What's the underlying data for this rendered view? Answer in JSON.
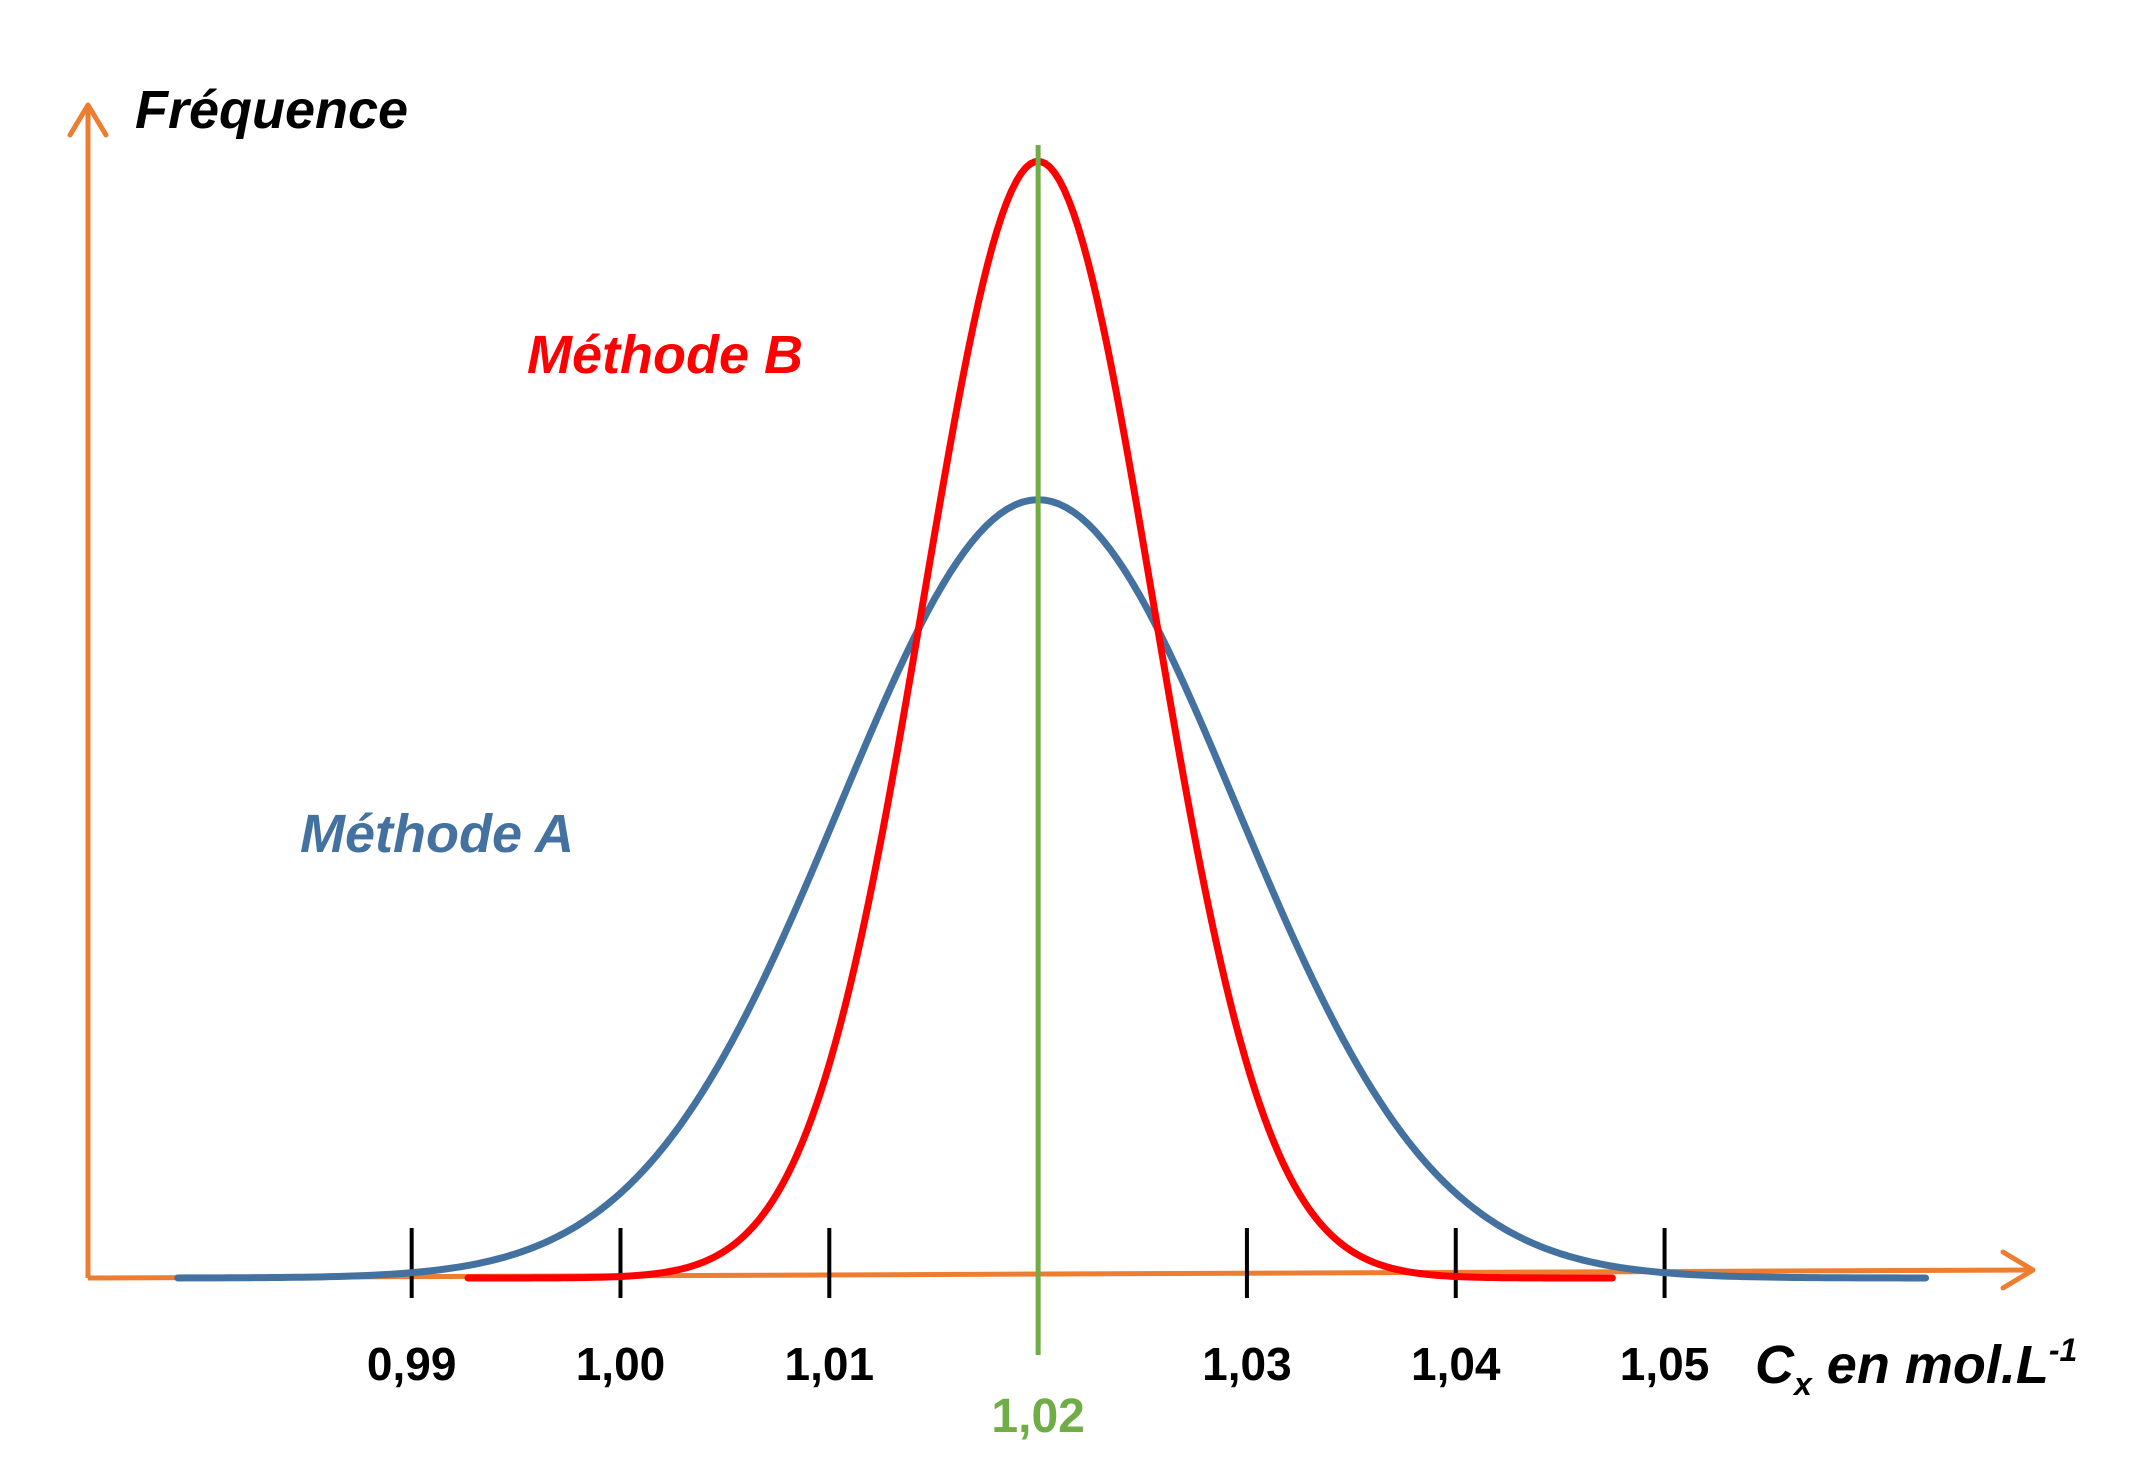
{
  "chart_data": {
    "type": "line",
    "ylabel": "Fréquence",
    "xlabel": {
      "main": "C",
      "subscript": "x",
      "unit": " en mol.L",
      "superscript": "-1"
    },
    "xlim": [
      0.9745,
      1.0675
    ],
    "ylim": [
      0,
      1.0
    ],
    "grid": false,
    "ticks": [
      {
        "value": 0.99,
        "label": "0,99"
      },
      {
        "value": 1.0,
        "label": "1,00"
      },
      {
        "value": 1.01,
        "label": "1,01"
      },
      {
        "value": 1.03,
        "label": "1,03"
      },
      {
        "value": 1.04,
        "label": "1,04"
      },
      {
        "value": 1.05,
        "label": "1,05"
      }
    ],
    "reference_line": {
      "value": 1.02,
      "label": "1,02",
      "color": "#70ad47"
    },
    "series": [
      {
        "name": "Méthode A",
        "color": "#4472a0",
        "mean": 1.02,
        "sd": 0.0095,
        "peak": 0.69,
        "range": [
          0.9788,
          1.0625
        ]
      },
      {
        "name": "Méthode B",
        "color": "#ff0000",
        "mean": 1.02,
        "sd": 0.0055,
        "peak": 0.99,
        "range": [
          0.9927,
          1.0475
        ]
      }
    ],
    "colors": {
      "axes": "#ed7d31",
      "ticks": "#000000"
    }
  }
}
